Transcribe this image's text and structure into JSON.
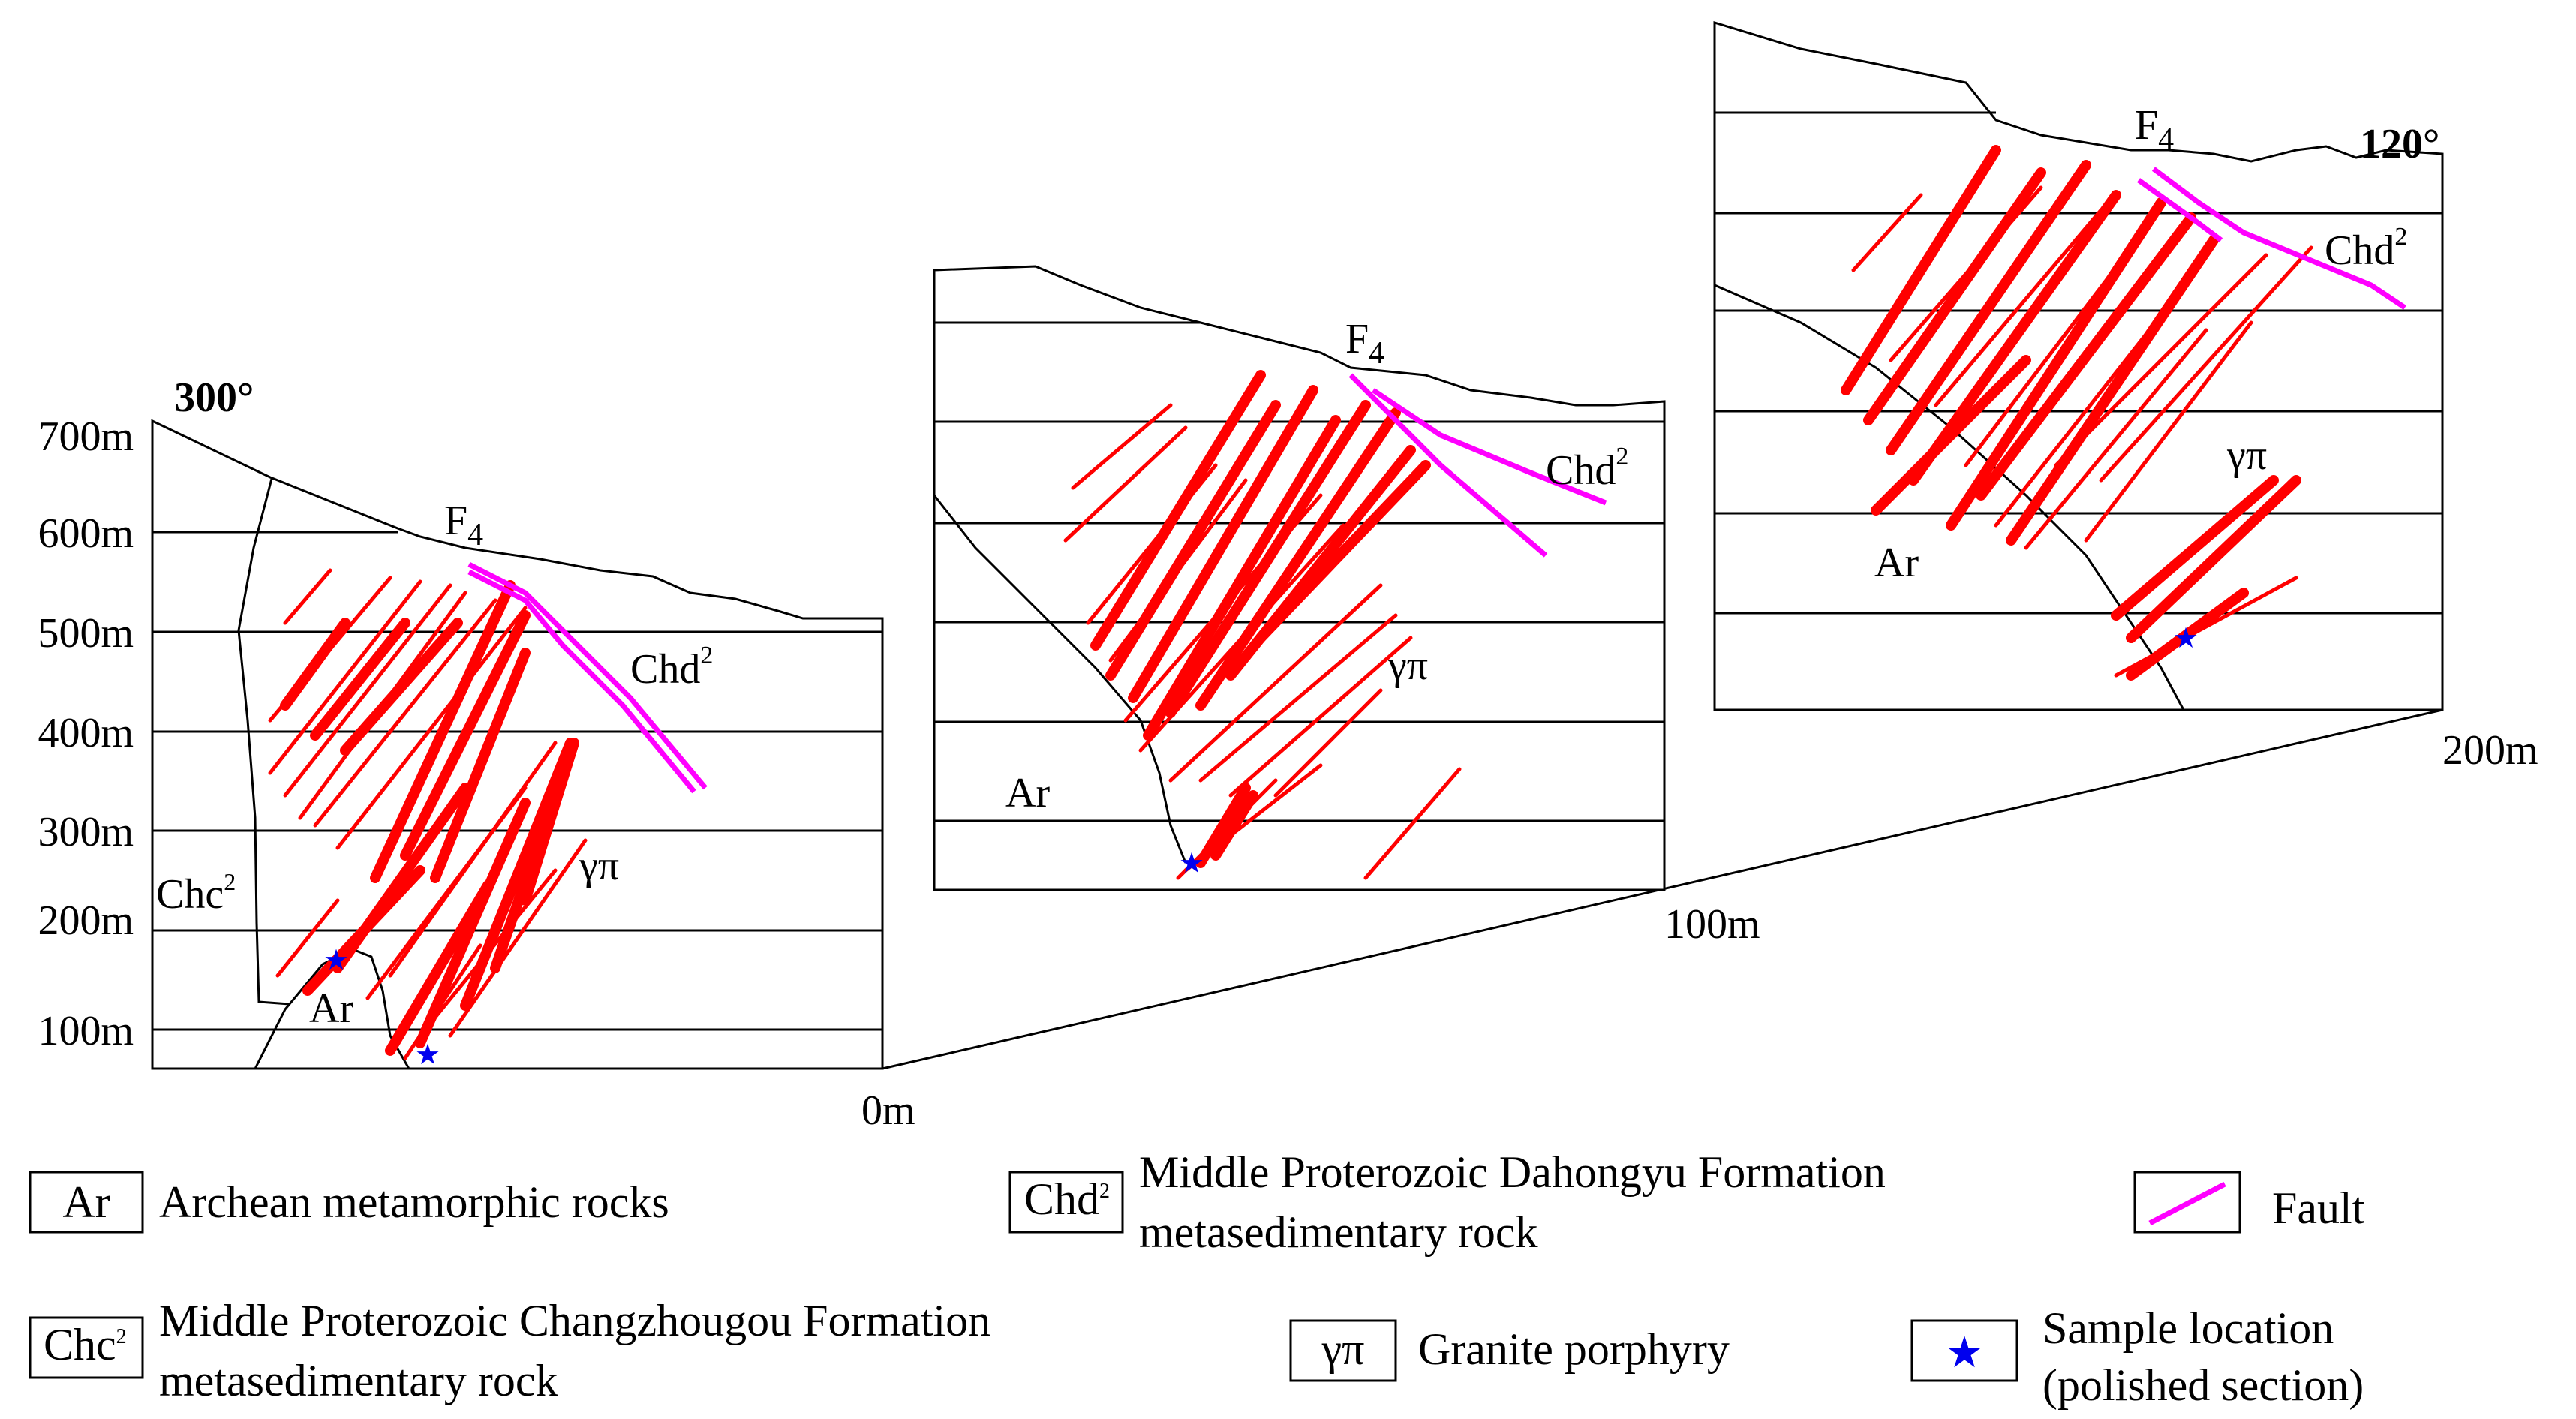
{
  "colors": {
    "vein": "#ff0000",
    "fault": "#ff00ff",
    "star": "#0000ee",
    "line": "#000000"
  },
  "sections": [
    {
      "id": "left",
      "azimuth": "300°",
      "fault_label": "F",
      "fault_sub": "4",
      "rock_labels": {
        "chd": "Chd",
        "chd_sup": "2",
        "gp": "γπ",
        "ar": "Ar",
        "chc": "Chc",
        "chc_sup": "2"
      }
    },
    {
      "id": "middle",
      "fault_label": "F",
      "fault_sub": "4",
      "rock_labels": {
        "chd": "Chd",
        "chd_sup": "2",
        "gp": "γπ",
        "ar": "Ar"
      }
    },
    {
      "id": "right",
      "azimuth": "120°",
      "fault_label": "F",
      "fault_sub": "4",
      "rock_labels": {
        "chd": "Chd",
        "chd_sup": "2",
        "gp": "γπ",
        "ar": "Ar"
      }
    }
  ],
  "elevation_axis": [
    "700m",
    "600m",
    "500m",
    "400m",
    "300m",
    "200m",
    "100m"
  ],
  "distance_axis": [
    "0m",
    "100m",
    "200m"
  ],
  "legend": [
    {
      "symbol": "Ar",
      "label": "Archean metamorphic rocks"
    },
    {
      "symbol": "Chd",
      "symbol_sup": "2",
      "label_line1": "Middle Proterozoic Dahongyu Formation",
      "label_line2": "metasedimentary rock"
    },
    {
      "symbol": "fault-line",
      "label": "Fault"
    },
    {
      "symbol": "Chc",
      "symbol_sup": "2",
      "label_line1": "Middle Proterozoic Changzhougou Formation",
      "label_line2": "metasedimentary rock"
    },
    {
      "symbol": "γπ",
      "label": "Granite porphyry"
    },
    {
      "symbol": "star-icon",
      "label_line1": "Sample  location",
      "label_line2": "(polished section)"
    }
  ]
}
